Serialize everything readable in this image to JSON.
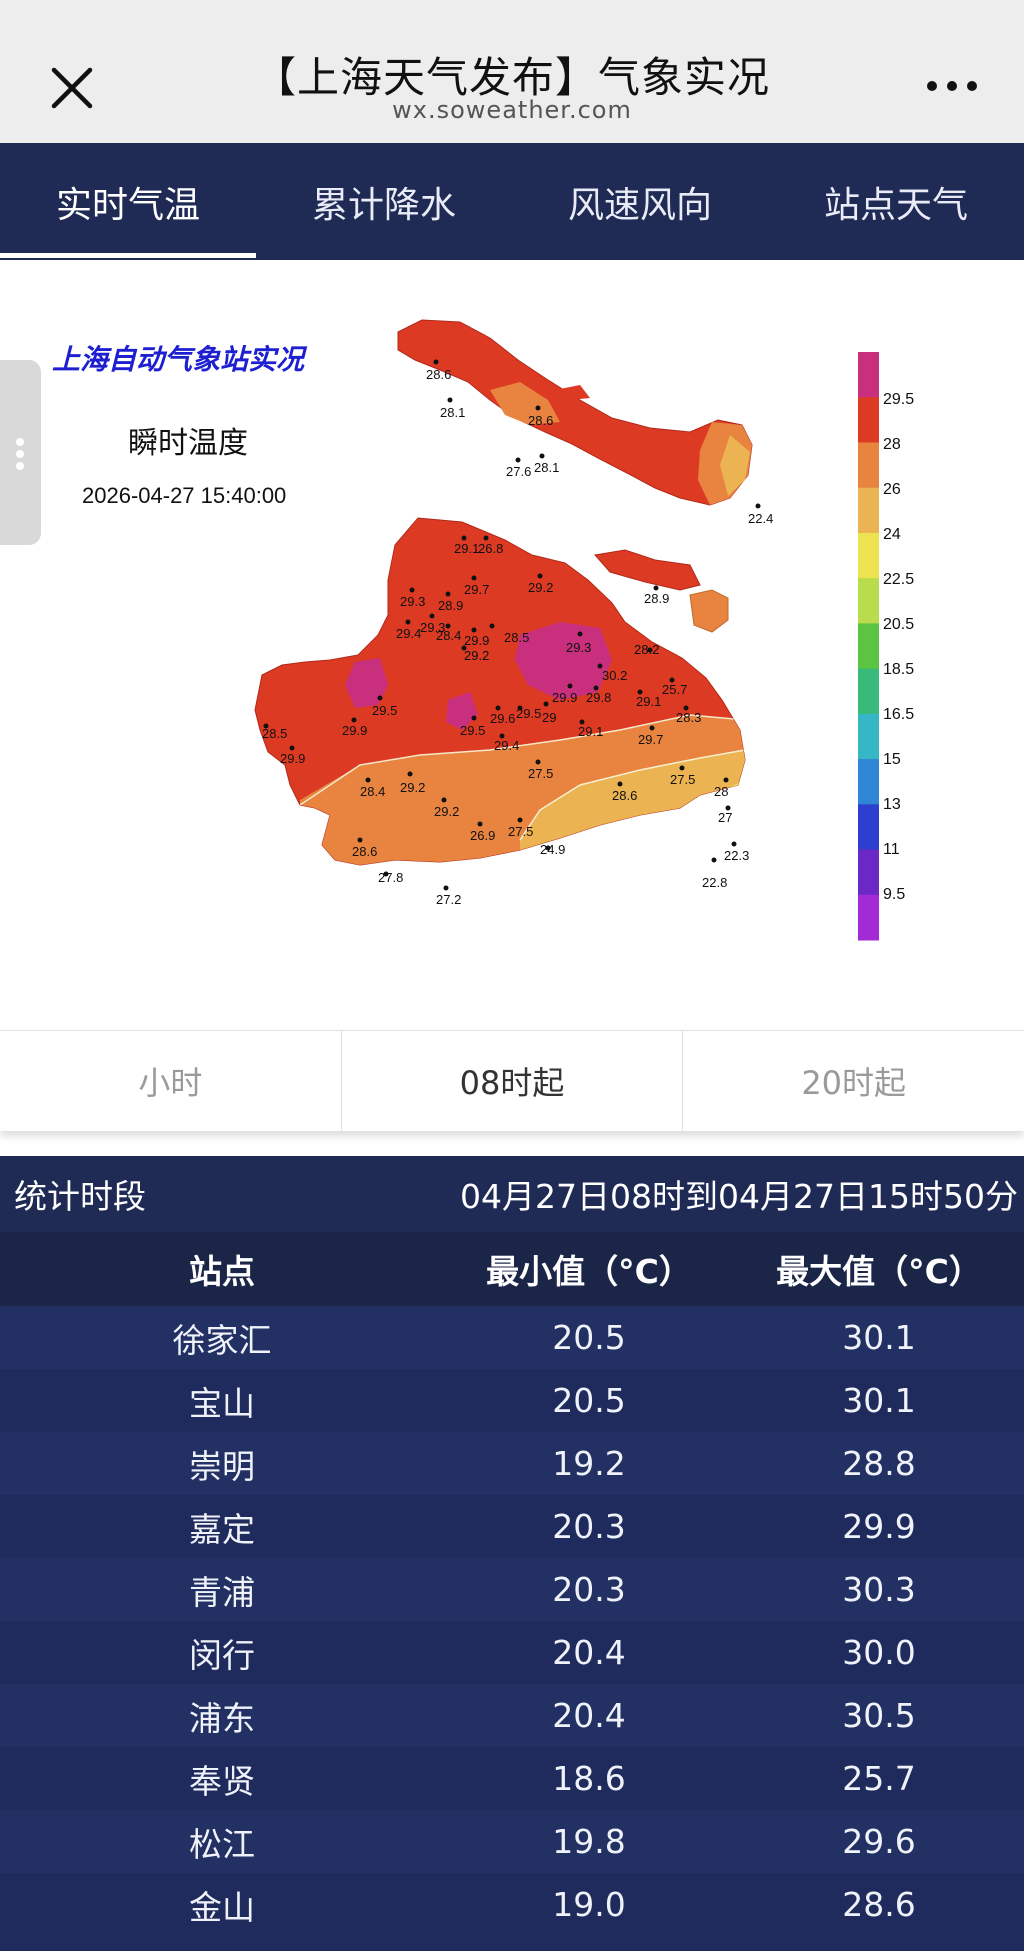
{
  "header": {
    "title": "【上海天气发布】气象实况",
    "subtitle": "wx.soweather.com"
  },
  "tabs": [
    {
      "label": "实时气温",
      "active": true
    },
    {
      "label": "累计降水",
      "active": false
    },
    {
      "label": "风速风向",
      "active": false
    },
    {
      "label": "站点天气",
      "active": false
    }
  ],
  "map": {
    "heading": "上海自动气象站实况",
    "subheading": "瞬时温度",
    "timestamp": "2026-04-27 15:40:00",
    "legend": {
      "labels": [
        "29.5",
        "28",
        "26",
        "24",
        "22.5",
        "20.5",
        "18.5",
        "16.5",
        "15",
        "13",
        "11",
        "9.5"
      ],
      "colors": [
        "#c8307e",
        "#dd3a24",
        "#e8843f",
        "#ebb352",
        "#ede24f",
        "#b9dc4d",
        "#5cc443",
        "#38bb7a",
        "#35b7c6",
        "#2f85d6",
        "#2d3fd1",
        "#6b28c6",
        "#a22bd6"
      ]
    },
    "station_values": [
      "28.6",
      "28.1",
      "28.6",
      "27.6",
      "28.1",
      "22.4",
      "29.1",
      "26.8",
      "29.7",
      "29.2",
      "28.9",
      "29.3",
      "28.9",
      "29.4",
      "29.3",
      "28.4",
      "29.9",
      "28.5",
      "29.2",
      "29.3",
      "30.2",
      "28.2",
      "25.7",
      "29.5",
      "29.6",
      "29.5",
      "29",
      "29.9",
      "29.8",
      "29.1",
      "28.3",
      "28.5",
      "29.9",
      "29.5",
      "29.4",
      "29.1",
      "29.7",
      "29.9",
      "27.5",
      "27.5",
      "28.4",
      "29.2",
      "29.2",
      "26.9",
      "27.5",
      "28.6",
      "28",
      "27",
      "28.6",
      "24.9",
      "22.3",
      "22.8",
      "27.8",
      "27.2"
    ]
  },
  "segments": [
    {
      "label": "小时",
      "active": false
    },
    {
      "label": "08时起",
      "active": true
    },
    {
      "label": "20时起",
      "active": false
    }
  ],
  "period": {
    "label": "统计时段",
    "range": "04月27日08时到04月27日15时50分"
  },
  "table": {
    "columns": [
      "站点",
      "最小值（°C）",
      "最大值（°C）"
    ],
    "rows": [
      [
        "徐家汇",
        "20.5",
        "30.1"
      ],
      [
        "宝山",
        "20.5",
        "30.1"
      ],
      [
        "崇明",
        "19.2",
        "28.8"
      ],
      [
        "嘉定",
        "20.3",
        "29.9"
      ],
      [
        "青浦",
        "20.3",
        "30.3"
      ],
      [
        "闵行",
        "20.4",
        "30.0"
      ],
      [
        "浦东",
        "20.4",
        "30.5"
      ],
      [
        "奉贤",
        "18.6",
        "25.7"
      ],
      [
        "松江",
        "19.8",
        "29.6"
      ],
      [
        "金山",
        "19.0",
        "28.6"
      ]
    ]
  },
  "icons": {
    "close": "close-icon",
    "more": "more-icon",
    "handle": "drag-handle-icon"
  }
}
